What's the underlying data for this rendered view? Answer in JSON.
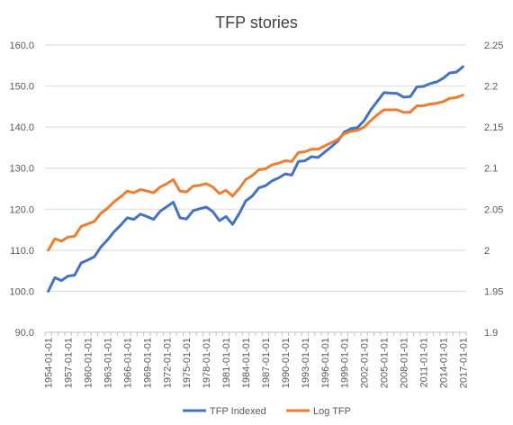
{
  "chart_data": {
    "type": "line",
    "title": "TFP stories",
    "xlabel": "",
    "ylabel": "",
    "x": [
      "1954-01-01",
      "1955-01-01",
      "1956-01-01",
      "1957-01-01",
      "1958-01-01",
      "1959-01-01",
      "1960-01-01",
      "1961-01-01",
      "1962-01-01",
      "1963-01-01",
      "1964-01-01",
      "1965-01-01",
      "1966-01-01",
      "1967-01-01",
      "1968-01-01",
      "1969-01-01",
      "1970-01-01",
      "1971-01-01",
      "1972-01-01",
      "1973-01-01",
      "1974-01-01",
      "1975-01-01",
      "1976-01-01",
      "1977-01-01",
      "1978-01-01",
      "1979-01-01",
      "1980-01-01",
      "1981-01-01",
      "1982-01-01",
      "1983-01-01",
      "1984-01-01",
      "1985-01-01",
      "1986-01-01",
      "1987-01-01",
      "1988-01-01",
      "1989-01-01",
      "1990-01-01",
      "1991-01-01",
      "1992-01-01",
      "1993-01-01",
      "1994-01-01",
      "1995-01-01",
      "1996-01-01",
      "1997-01-01",
      "1998-01-01",
      "1999-01-01",
      "2000-01-01",
      "2001-01-01",
      "2002-01-01",
      "2003-01-01",
      "2004-01-01",
      "2005-01-01",
      "2006-01-01",
      "2007-01-01",
      "2008-01-01",
      "2009-01-01",
      "2010-01-01",
      "2011-01-01",
      "2012-01-01",
      "2013-01-01",
      "2014-01-01",
      "2015-01-01",
      "2016-01-01",
      "2017-01-01"
    ],
    "x_tick_labels": [
      "1954-01-01",
      "1957-01-01",
      "1960-01-01",
      "1963-01-01",
      "1966-01-01",
      "1969-01-01",
      "1972-01-01",
      "1975-01-01",
      "1978-01-01",
      "1981-01-01",
      "1984-01-01",
      "1987-01-01",
      "1990-01-01",
      "1993-01-01",
      "1996-01-01",
      "1999-01-01",
      "2002-01-01",
      "2005-01-01",
      "2008-01-01",
      "2011-01-01",
      "2014-01-01",
      "2017-01-01"
    ],
    "series": [
      {
        "name": "TFP Indexed",
        "axis": "left",
        "color": "#4472c4",
        "values": [
          100.0,
          103.3,
          102.6,
          103.7,
          103.9,
          106.9,
          107.6,
          108.4,
          110.8,
          112.5,
          114.5,
          116.1,
          117.9,
          117.5,
          118.8,
          118.2,
          117.5,
          119.5,
          120.6,
          121.7,
          117.9,
          117.6,
          119.6,
          120.1,
          120.5,
          119.4,
          117.2,
          118.2,
          116.3,
          118.9,
          122.0,
          123.2,
          125.2,
          125.7,
          126.9,
          127.6,
          128.6,
          128.3,
          131.6,
          131.8,
          132.8,
          132.6,
          133.9,
          135.2,
          136.6,
          138.8,
          139.6,
          139.9,
          141.6,
          144.2,
          146.3,
          148.4,
          148.3,
          148.2,
          147.3,
          147.4,
          149.8,
          149.9,
          150.6,
          151.0,
          151.9,
          153.2,
          153.4,
          154.7
        ]
      },
      {
        "name": "Log TFP",
        "axis": "right",
        "color": "#ed7d31",
        "values": [
          2.0,
          2.014,
          2.011,
          2.016,
          2.017,
          2.029,
          2.032,
          2.035,
          2.045,
          2.051,
          2.059,
          2.065,
          2.072,
          2.07,
          2.074,
          2.072,
          2.07,
          2.077,
          2.081,
          2.086,
          2.072,
          2.071,
          2.078,
          2.079,
          2.081,
          2.077,
          2.069,
          2.073,
          2.066,
          2.075,
          2.086,
          2.091,
          2.098,
          2.099,
          2.104,
          2.106,
          2.109,
          2.108,
          2.119,
          2.12,
          2.123,
          2.123,
          2.127,
          2.131,
          2.135,
          2.142,
          2.145,
          2.146,
          2.15,
          2.158,
          2.165,
          2.171,
          2.171,
          2.171,
          2.168,
          2.168,
          2.176,
          2.176,
          2.178,
          2.179,
          2.181,
          2.185,
          2.186,
          2.189
        ]
      }
    ],
    "left_axis": {
      "min": 90,
      "max": 160,
      "step": 10,
      "tick_labels": [
        "90.0",
        "100.0",
        "110.0",
        "120.0",
        "130.0",
        "140.0",
        "150.0",
        "160.0"
      ]
    },
    "right_axis": {
      "min": 1.9,
      "max": 2.25,
      "step": 0.05,
      "tick_labels": [
        "1.9",
        "1.95",
        "2",
        "2.05",
        "2.1",
        "2.15",
        "2.2",
        "2.25"
      ]
    },
    "grid": true,
    "legend_position": "bottom"
  }
}
